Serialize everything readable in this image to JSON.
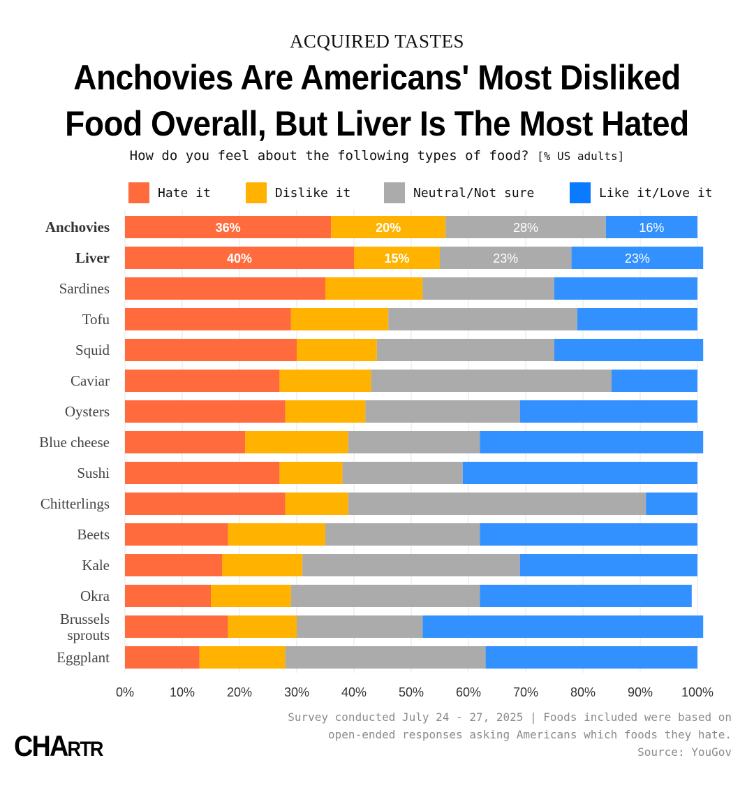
{
  "header": {
    "kicker": "ACQUIRED TASTES",
    "title_line1": "Anchovies Are Americans' Most Disliked",
    "title_line2": "Food Overall, But Liver Is The Most Hated",
    "subtitle": "How do you feel about the following types of food?",
    "subtitle_unit": "[% US adults]"
  },
  "footer": {
    "note_line1": "Survey conducted July 24 - 27, 2025 | Foods included were based on",
    "note_line2": "open-ended responses asking Americans which foods they hate.",
    "source": "Source: YouGov",
    "brand_large": "CHA",
    "brand_small": "RTR"
  },
  "chart_data": {
    "type": "bar",
    "orientation": "horizontal",
    "stacked": true,
    "xlim": [
      0,
      100
    ],
    "x_ticks": [
      "0%",
      "10%",
      "20%",
      "30%",
      "40%",
      "50%",
      "60%",
      "70%",
      "80%",
      "90%",
      "100%"
    ],
    "grid": "vertical",
    "legend_position": "top",
    "categories": [
      "Anchovies",
      "Liver",
      "Sardines",
      "Tofu",
      "Squid",
      "Caviar",
      "Oysters",
      "Blue cheese",
      "Sushi",
      "Chitterlings",
      "Beets",
      "Kale",
      "Okra",
      "Brussels sprouts",
      "Eggplant"
    ],
    "category_lines": [
      [
        "Anchovies"
      ],
      [
        "Liver"
      ],
      [
        "Sardines"
      ],
      [
        "Tofu"
      ],
      [
        "Squid"
      ],
      [
        "Caviar"
      ],
      [
        "Oysters"
      ],
      [
        "Blue cheese"
      ],
      [
        "Sushi"
      ],
      [
        "Chitterlings"
      ],
      [
        "Beets"
      ],
      [
        "Kale"
      ],
      [
        "Okra"
      ],
      [
        "Brussels",
        "sprouts"
      ],
      [
        "Eggplant"
      ]
    ],
    "bold_categories": [
      "Anchovies",
      "Liver"
    ],
    "series": [
      {
        "name": "Hate it",
        "color": "#ff6b3d",
        "values": [
          36,
          40,
          35,
          29,
          30,
          27,
          28,
          21,
          27,
          28,
          18,
          17,
          15,
          18,
          13
        ]
      },
      {
        "name": "Dislike it",
        "color": "#ffb300",
        "values": [
          20,
          15,
          17,
          17,
          14,
          16,
          14,
          18,
          11,
          11,
          17,
          14,
          14,
          12,
          15
        ]
      },
      {
        "name": "Neutral/Not sure",
        "color": "#ababab",
        "values": [
          28,
          23,
          23,
          33,
          31,
          42,
          27,
          23,
          21,
          52,
          27,
          38,
          33,
          22,
          35
        ]
      },
      {
        "name": "Like it/Love it",
        "color": "#3391ff",
        "values": [
          16,
          23,
          25,
          21,
          26,
          15,
          31,
          39,
          41,
          9,
          38,
          31,
          37,
          49,
          37
        ]
      }
    ],
    "data_labels": [
      {
        "row": 0,
        "series": 0,
        "text": "36%"
      },
      {
        "row": 0,
        "series": 1,
        "text": "20%"
      },
      {
        "row": 0,
        "series": 2,
        "text": "28%"
      },
      {
        "row": 0,
        "series": 3,
        "text": "16%"
      },
      {
        "row": 1,
        "series": 0,
        "text": "40%"
      },
      {
        "row": 1,
        "series": 1,
        "text": "15%"
      },
      {
        "row": 1,
        "series": 2,
        "text": "23%"
      },
      {
        "row": 1,
        "series": 3,
        "text": "23%"
      }
    ],
    "legend_swatch_colors": [
      "#ff6b3d",
      "#ffb300",
      "#ababab",
      "#0a7aff"
    ]
  }
}
